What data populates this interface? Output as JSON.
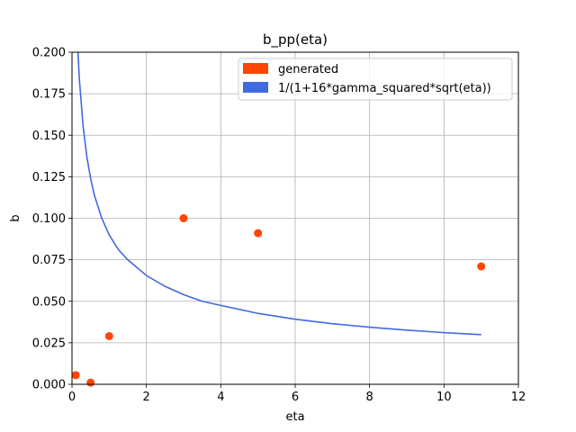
{
  "chart_data": {
    "type": "scatter",
    "title": "b_pp(eta)",
    "xlabel": "eta",
    "ylabel": "b",
    "xlim": [
      0,
      12
    ],
    "ylim": [
      0,
      0.2
    ],
    "xticks": [
      0,
      2,
      4,
      6,
      8,
      10,
      12
    ],
    "yticks": [
      0.0,
      0.025,
      0.05,
      0.075,
      0.1,
      0.125,
      0.15,
      0.175,
      0.2
    ],
    "xtick_labels": [
      "0",
      "2",
      "4",
      "6",
      "8",
      "10",
      "12"
    ],
    "ytick_labels": [
      "0.000",
      "0.025",
      "0.050",
      "0.075",
      "0.100",
      "0.125",
      "0.150",
      "0.175",
      "0.200"
    ],
    "grid": true,
    "legend_position": "top-right",
    "series": [
      {
        "name": "generated",
        "kind": "scatter",
        "color": "#ff4500",
        "x": [
          0.1,
          0.5,
          1.0,
          3.0,
          5.0,
          11.0
        ],
        "y": [
          0.0055,
          0.001,
          0.029,
          0.1,
          0.091,
          0.071
        ]
      },
      {
        "name": "1/(1+16*gamma_squared*sqrt(eta))",
        "kind": "line",
        "color": "#4169e1",
        "x": [
          0.16,
          0.2,
          0.3,
          0.4,
          0.5,
          0.6,
          0.8,
          1.0,
          1.25,
          1.5,
          2.0,
          2.5,
          3.0,
          3.5,
          4.0,
          5.0,
          6.0,
          7.0,
          8.0,
          9.0,
          10.0,
          11.0
        ],
        "y": [
          0.2,
          0.183,
          0.155,
          0.137,
          0.124,
          0.114,
          0.1,
          0.09,
          0.081,
          0.075,
          0.0655,
          0.059,
          0.054,
          0.05,
          0.0475,
          0.0427,
          0.0392,
          0.0365,
          0.0344,
          0.0326,
          0.0311,
          0.0299
        ]
      }
    ]
  }
}
